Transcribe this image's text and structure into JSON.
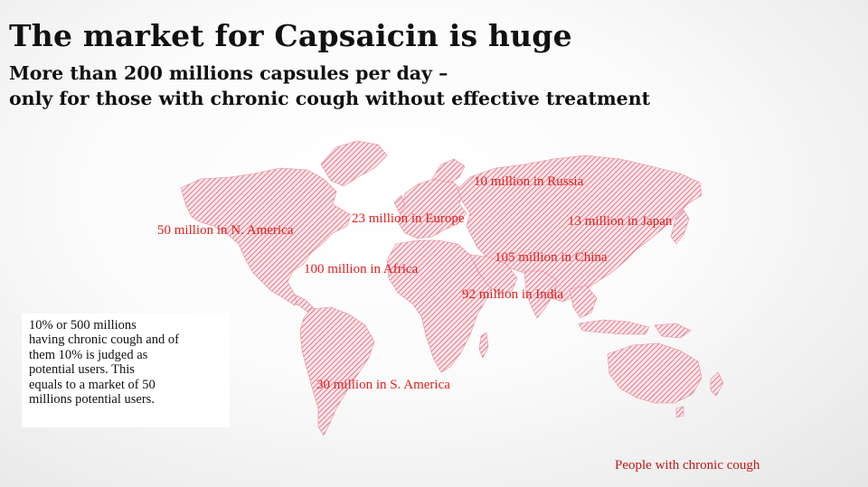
{
  "slide": {
    "title": "The market for Capsaicin is huge",
    "subtitle_lines": [
      "More than 200 millions capsules per day –",
      "only for those with chronic cough without effective treatment"
    ]
  },
  "map": {
    "fill_color": "#e0485c",
    "regions": {
      "russia": "10 million in Russia",
      "europe": "23 million in Europe",
      "japan": "13 million in Japan",
      "n_america": "50 million in N. America",
      "china": "105 million in China",
      "africa": "100 million in Africa",
      "india": "92 million in India",
      "s_america": "30 million in S. America"
    }
  },
  "infobox": {
    "lines": [
      "10% or 500 millions",
      "having chronic cough and of",
      "them 10% is judged as",
      "potential users. This",
      "equals to a market of 50",
      "millions potential users."
    ]
  },
  "legend": {
    "label": "People with  chronic cough",
    "color": "#c01818"
  }
}
